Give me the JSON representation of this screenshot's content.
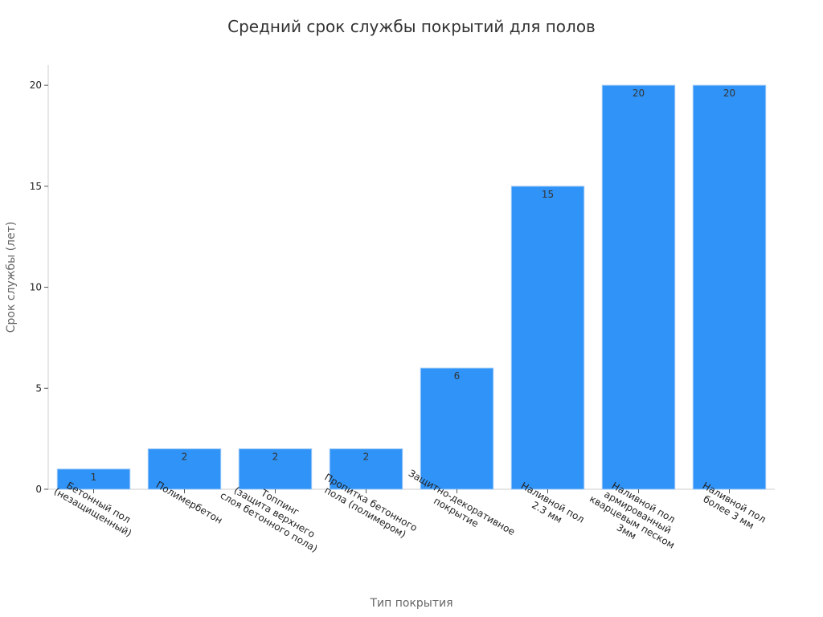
{
  "chart_data": {
    "type": "bar",
    "title": "Средний срок службы покрытий для полов",
    "xlabel": "Тип покрытия",
    "ylabel": "Срок службы (лет)",
    "ylim": [
      0,
      21
    ],
    "yticks": [
      0,
      5,
      10,
      15,
      20
    ],
    "grid": false,
    "categories": [
      [
        "Бетонный пол",
        "(незащищенный)"
      ],
      [
        "Полимербетон"
      ],
      [
        "Топпинг",
        "(защита верхнего",
        "слоя бетонного пола)"
      ],
      [
        "Пропитка бетонного",
        "пола (полимером)"
      ],
      [
        "Защитно-декоративное",
        "покрытие"
      ],
      [
        "Наливной пол",
        "2.3 мм"
      ],
      [
        "Наливной пол",
        "армированный",
        "кварцевым песком",
        "3мм"
      ],
      [
        "Наливной пол",
        "более 3 мм"
      ]
    ],
    "values": [
      1,
      2,
      2,
      2,
      6,
      15,
      20,
      20
    ],
    "color": "#2f93f7"
  }
}
